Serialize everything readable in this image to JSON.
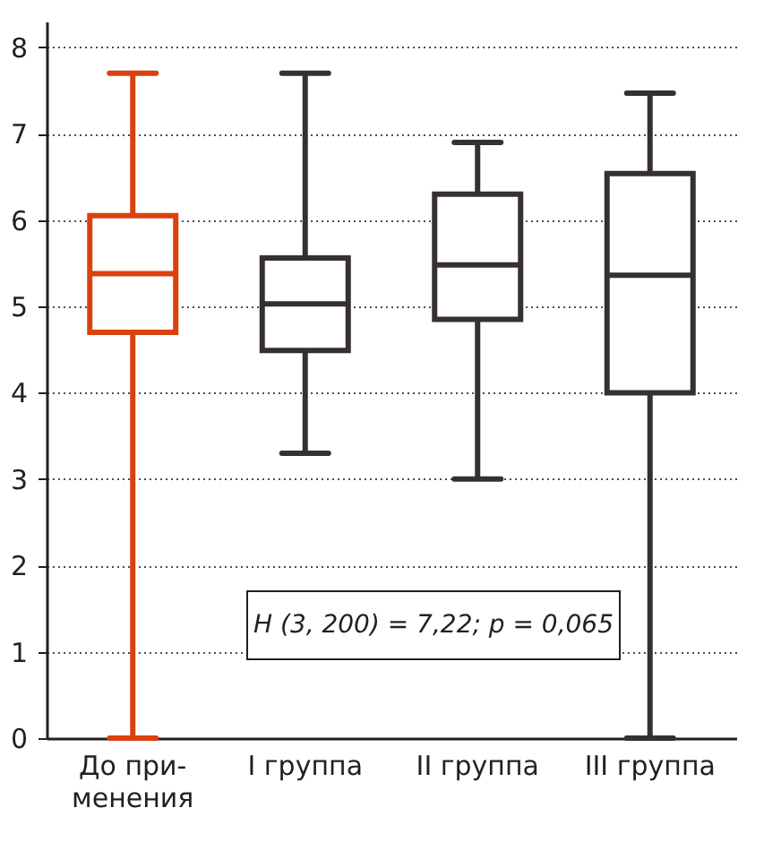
{
  "chart_data": {
    "type": "box",
    "categories": [
      "До при-\nменения",
      "I группа",
      "II группа",
      "III группа"
    ],
    "boxes": [
      {
        "low": 0,
        "q1": 4.7,
        "median": 5.38,
        "q3": 6.05,
        "high": 7.7
      },
      {
        "low": 3.3,
        "q1": 4.49,
        "median": 5.03,
        "q3": 5.56,
        "high": 7.7
      },
      {
        "low": 3.0,
        "q1": 4.85,
        "median": 5.48,
        "q3": 6.3,
        "high": 6.9
      },
      {
        "low": 0,
        "q1": 4.0,
        "median": 5.36,
        "q3": 6.54,
        "high": 7.47
      }
    ],
    "colors": [
      "#d9420f",
      "#363030",
      "#363030",
      "#363030"
    ],
    "ylim": [
      0,
      8.3
    ],
    "yticks": [
      0,
      1,
      2,
      3,
      4,
      5,
      6,
      7,
      8
    ],
    "grid": "y",
    "legend": false,
    "annotations": [
      "H (3, 200) = 7,22; p = 0,065"
    ]
  }
}
